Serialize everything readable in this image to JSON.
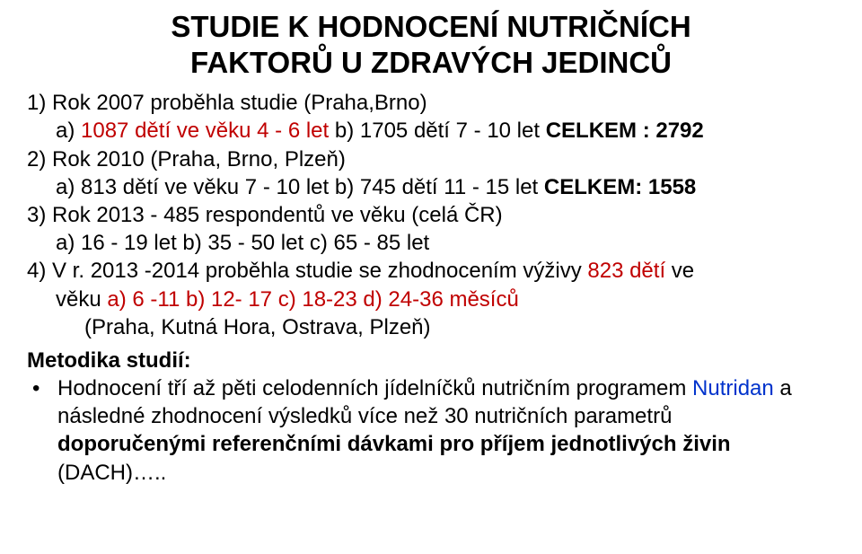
{
  "colors": {
    "text": "#000000",
    "red": "#c00000",
    "blue": "#0033cc",
    "background": "#ffffff"
  },
  "title": {
    "line1": "STUDIE K HODNOCENÍ NUTRIČNÍCH",
    "line2": "FAKTORŮ  U ZDRAVÝCH JEDINCŮ"
  },
  "item1": {
    "head": "1) Rok 2007 proběhla studie (Praha,Brno)",
    "a_prefix": "a) ",
    "a_red": "1087 dětí ve věku 4 - 6 let",
    "a_mid": "   b) 1705 dětí 7 - 10 let    ",
    "a_total": "CELKEM :  2792"
  },
  "item2": {
    "head": "2) Rok 2010 (Praha, Brno, Plzeň)",
    "a_prefix": "a) 813 dětí ve věku 7 - 10 let      b) 745 dětí  11 - 15 let  ",
    "total": "CELKEM: 1558"
  },
  "item3": {
    "head": "3) Rok 2013 - 485 respondentů ve věku (celá ČR)",
    "parts": "a) 16 - 19 let      b) 35 - 50 let     c) 65 - 85 let"
  },
  "item4": {
    "head_prefix": "4) V r. 2013 -2014 proběhla studie se zhodnocením výživy ",
    "head_red": "823 dětí",
    "head_suffix": " ve",
    "line2_prefix": "věku         ",
    "line2_red": "a) 6 -11 b) 12- 17 c) 18-23 d) 24-36  měsíců",
    "line3": "(Praha, Kutná Hora,  Ostrava, Plzeň)"
  },
  "method": {
    "label": "Metodika studií:",
    "bullet": "•",
    "line1_black": "Hodnocení tří až pěti celodenních jídelníčků nutričním programem ",
    "line1_blue": "Nutridan",
    "line2": "a následné zhodnocení výsledků více než 30 nutričních parametrů",
    "line3_bold": "doporučenými referenčními dávkami pro příjem jednotlivých živin",
    "line4": "(DACH)….."
  }
}
